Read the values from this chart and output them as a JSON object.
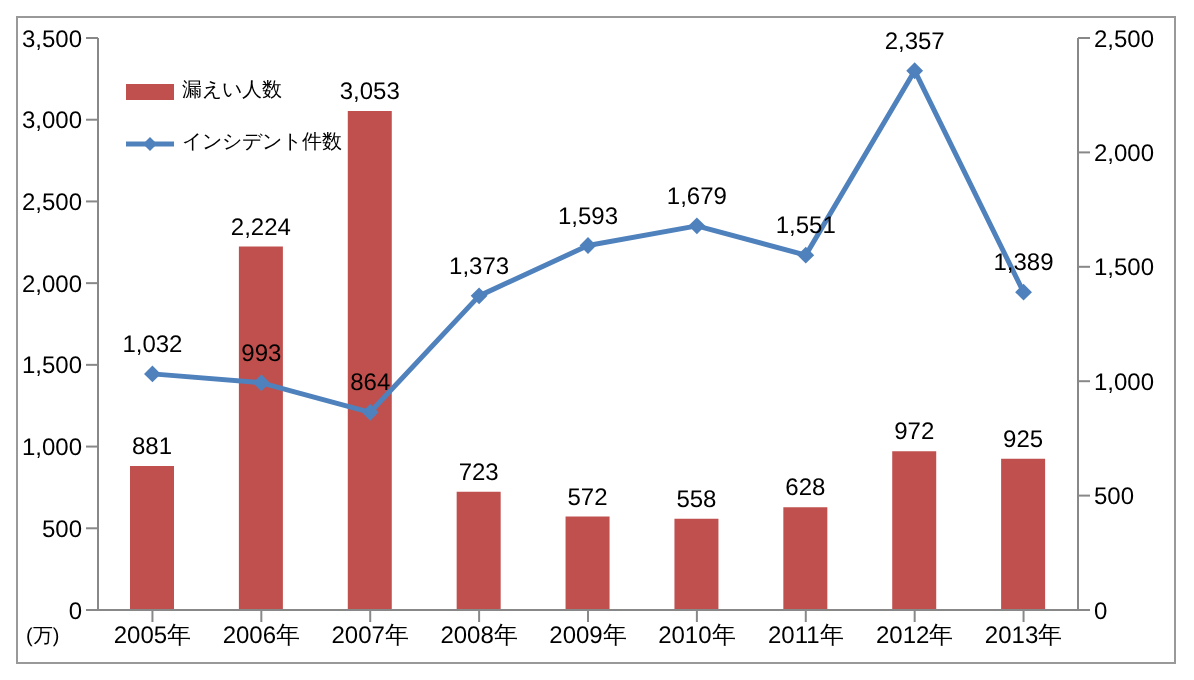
{
  "chart_data": {
    "type": "bar",
    "categories": [
      "2005年",
      "2006年",
      "2007年",
      "2008年",
      "2009年",
      "2010年",
      "2011年",
      "2012年",
      "2013年"
    ],
    "series": [
      {
        "name": "漏えい人数",
        "color": "#c0504d",
        "values": [
          881,
          2224,
          3053,
          723,
          572,
          558,
          628,
          972,
          925
        ],
        "value_labels": [
          "881",
          "2,224",
          "3,053",
          "723",
          "572",
          "558",
          "628",
          "972",
          "925"
        ]
      },
      {
        "name": "インシデント件数",
        "type": "line",
        "axis": "y2",
        "color": "#4f81bd",
        "marker": "diamond",
        "values": [
          1032,
          993,
          864,
          1373,
          1593,
          1679,
          1551,
          2357,
          1389
        ],
        "value_labels": [
          "1,032",
          "993",
          "864",
          "1,373",
          "1,593",
          "1,679",
          "1,551",
          "2,357",
          "1,389"
        ]
      }
    ],
    "ylim": [
      0,
      3500
    ],
    "yticks": [
      0,
      500,
      {
        "value": 1000,
        "label": "1,000"
      },
      {
        "value": 1500,
        "label": "1,500"
      },
      {
        "value": 2000,
        "label": "2,000"
      },
      {
        "value": 2500,
        "label": "2,500"
      },
      {
        "value": 3000,
        "label": "3,000"
      },
      {
        "value": 3500,
        "label": "3,500"
      }
    ],
    "y2lim": [
      0,
      2500
    ],
    "y2ticks": [
      0,
      500,
      {
        "value": 1000,
        "label": "1,000"
      },
      {
        "value": 1500,
        "label": "1,500"
      },
      {
        "value": 2000,
        "label": "2,000"
      },
      {
        "value": 2500,
        "label": "2,500"
      }
    ],
    "grid": false,
    "legend": "top left",
    "annotations": [
      "(万)"
    ]
  }
}
